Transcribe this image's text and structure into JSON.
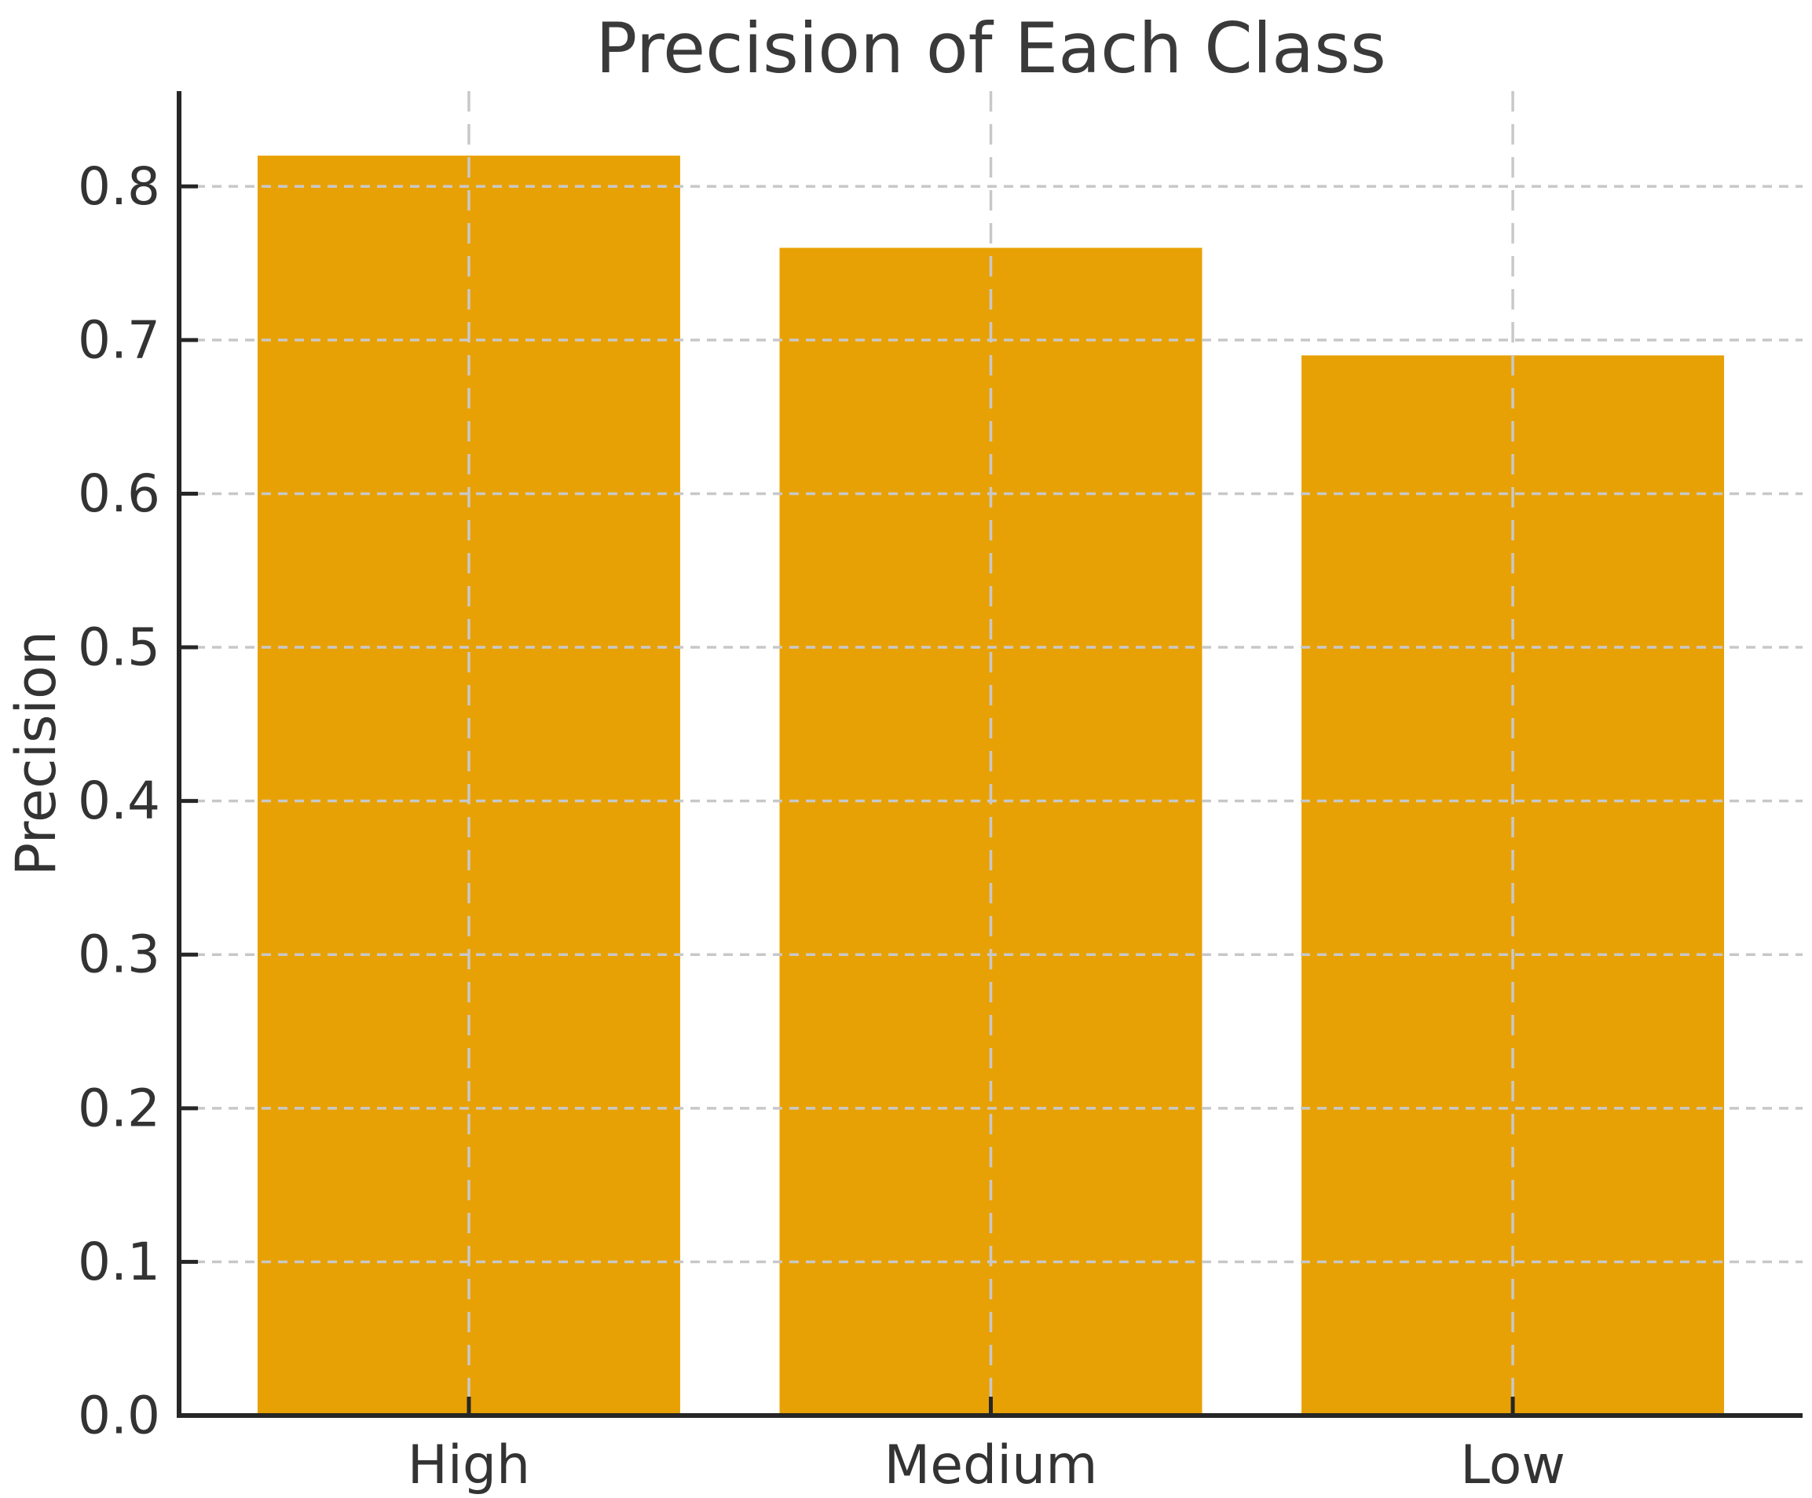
{
  "chart_data": {
    "type": "bar",
    "title": "Precision of Each Class",
    "xlabel": "",
    "ylabel": "Precision",
    "categories": [
      "High",
      "Medium",
      "Low"
    ],
    "values": [
      0.82,
      0.76,
      0.69
    ],
    "ylim": [
      0,
      0.862
    ],
    "yticks": [
      0.0,
      0.1,
      0.2,
      0.3,
      0.4,
      0.5,
      0.6,
      0.7,
      0.8
    ],
    "ytick_labels": [
      "0.0",
      "0.1",
      "0.2",
      "0.3",
      "0.4",
      "0.5",
      "0.6",
      "0.7",
      "0.8"
    ],
    "grid": true,
    "grid_style": "dashed",
    "grid_above_bars": true,
    "legend": false,
    "colors": {
      "bar": "#E8A104",
      "grid": "#C8C8C8",
      "axis": "#262626",
      "text": "#333333",
      "background": "#FFFFFF"
    }
  }
}
